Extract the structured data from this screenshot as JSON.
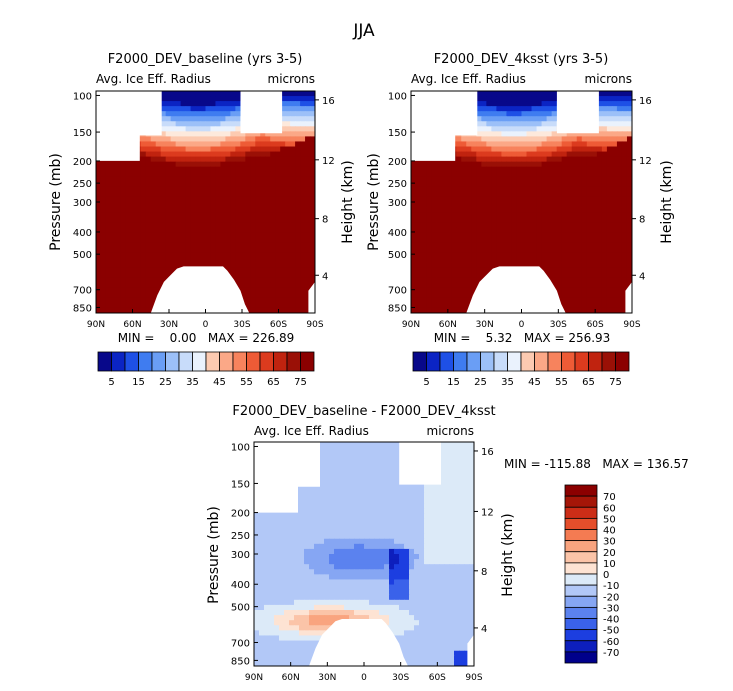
{
  "figure_title": "JJA",
  "colors": {
    "blue_red_scale": [
      "#08088a",
      "#0b24c4",
      "#1e50e6",
      "#3f7cf0",
      "#6a9ef5",
      "#9cc0f8",
      "#c8dcfa",
      "#eaf2fd",
      "#fde9dc",
      "#fccab1",
      "#fba887",
      "#f7835d",
      "#ee5b36",
      "#dc3b1e",
      "#c0230f",
      "#9a1006",
      "#8b0000"
    ],
    "diff_scale": [
      "#00008b",
      "#0d1fbd",
      "#1c3ee0",
      "#3a62ea",
      "#5b82ef",
      "#86a6f3",
      "#b2c8f7",
      "#dceaf8",
      "#fde3d3",
      "#fbc4a8",
      "#f9a47f",
      "#f47b52",
      "#e54e2b",
      "#cc2d17",
      "#a51608",
      "#8b0000"
    ]
  },
  "chart_data": [
    {
      "type": "heatmap",
      "title": "F2000_DEV_baseline (yrs 3-5)",
      "left_label": "Avg. Ice Eff. Radius",
      "right_label": "microns",
      "ylabel": "Pressure (mb)",
      "y2label": "Height (km)",
      "x_ticks": [
        "90N",
        "60N",
        "30N",
        "0",
        "30S",
        "60S",
        "90S"
      ],
      "y_ticks": [
        "100",
        "150",
        "200",
        "250",
        "300",
        "400",
        "500",
        "700",
        "850"
      ],
      "y2_ticks": [
        "16",
        "12",
        "8",
        "4"
      ],
      "stats": "MIN =    0.00   MAX = 226.89",
      "colorbar_ticks": [
        "5",
        "15",
        "25",
        "35",
        "45",
        "55",
        "65",
        "75"
      ],
      "levels": [
        0,
        226.89
      ],
      "min": 0.0,
      "max": 226.89
    },
    {
      "type": "heatmap",
      "title": "F2000_DEV_4ksst (yrs 3-5)",
      "left_label": "Avg. Ice Eff. Radius",
      "right_label": "microns",
      "ylabel": "Pressure (mb)",
      "y2label": "Height (km)",
      "x_ticks": [
        "90N",
        "60N",
        "30N",
        "0",
        "30S",
        "60S",
        "90S"
      ],
      "y_ticks": [
        "100",
        "150",
        "200",
        "250",
        "300",
        "400",
        "500",
        "700",
        "850"
      ],
      "y2_ticks": [
        "16",
        "12",
        "8",
        "4"
      ],
      "stats": "MIN =    5.32   MAX = 256.93",
      "colorbar_ticks": [
        "5",
        "15",
        "25",
        "35",
        "45",
        "55",
        "65",
        "75"
      ],
      "min": 5.32,
      "max": 256.93
    },
    {
      "type": "heatmap",
      "title": "F2000_DEV_baseline - F2000_DEV_4ksst",
      "left_label": "Avg. Ice Eff. Radius",
      "right_label": "microns",
      "ylabel": "Pressure (mb)",
      "y2label": "Height (km)",
      "x_ticks": [
        "90N",
        "60N",
        "30N",
        "0",
        "30S",
        "60S",
        "90S"
      ],
      "y_ticks": [
        "100",
        "150",
        "200",
        "250",
        "300",
        "400",
        "500",
        "700",
        "850"
      ],
      "y2_ticks": [
        "16",
        "12",
        "8",
        "4"
      ],
      "stats": "MIN = -115.88   MAX = 136.57",
      "colorbar_ticks": [
        "70",
        "60",
        "50",
        "40",
        "30",
        "20",
        "10",
        "0",
        "-10",
        "-20",
        "-30",
        "-40",
        "-50",
        "-60",
        "-70"
      ],
      "min": -115.88,
      "max": 136.57
    }
  ]
}
